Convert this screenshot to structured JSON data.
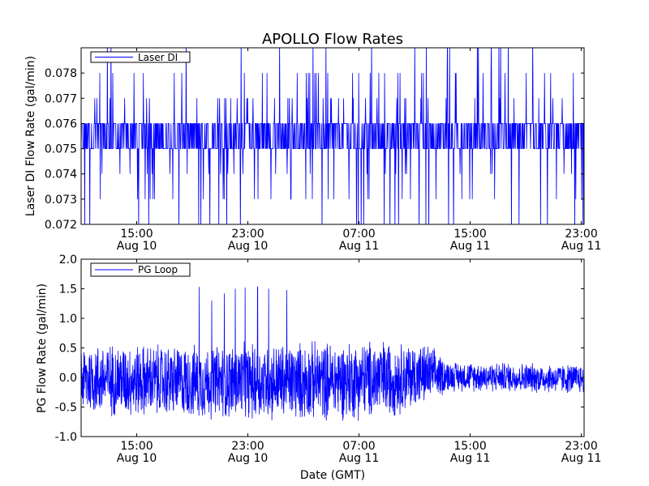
{
  "title": "APOLLO Flow Rates",
  "line_color": "#0000ff",
  "chart_data": [
    {
      "type": "line",
      "legend": "Laser DI",
      "legend_loc": "upper-left",
      "ylabel": "Laser DI Flow Rate (gal/min)",
      "ylim": [
        0.072,
        0.079
      ],
      "yticks": [
        "0.072",
        "0.073",
        "0.074",
        "0.075",
        "0.076",
        "0.077",
        "0.078"
      ],
      "ytick_values": [
        0.072,
        0.073,
        0.074,
        0.075,
        0.076,
        0.077,
        0.078
      ],
      "xticks": [
        {
          "time": "15:00",
          "date": "Aug 10",
          "t": 4
        },
        {
          "time": "23:00",
          "date": "Aug 10",
          "t": 12
        },
        {
          "time": "07:00",
          "date": "Aug 11",
          "t": 20
        },
        {
          "time": "15:00",
          "date": "Aug 11",
          "t": 28
        },
        {
          "time": "23:00",
          "date": "Aug 11",
          "t": 36
        }
      ],
      "xlim_hours": [
        0,
        36.2
      ],
      "xlim_start": "Aug 10 11:00",
      "quantization": 0.001,
      "baseline_values": [
        0.075,
        0.076
      ],
      "spike_values": [
        0.073,
        0.074,
        0.077,
        0.078
      ]
    },
    {
      "type": "line",
      "legend": "PG Loop",
      "legend_loc": "upper-left",
      "ylabel": "PG Flow Rate (gal/min)",
      "xlabel": "Date (GMT)",
      "ylim": [
        -1.0,
        2.0
      ],
      "yticks": [
        "-1.0",
        "-0.5",
        "0.0",
        "0.5",
        "1.0",
        "1.5",
        "2.0"
      ],
      "ytick_values": [
        -1.0,
        -0.5,
        0.0,
        0.5,
        1.0,
        1.5,
        2.0
      ],
      "xticks": [
        {
          "time": "15:00",
          "date": "Aug 10",
          "t": 4
        },
        {
          "time": "23:00",
          "date": "Aug 10",
          "t": 12
        },
        {
          "time": "07:00",
          "date": "Aug 11",
          "t": 20
        },
        {
          "time": "15:00",
          "date": "Aug 11",
          "t": 28
        },
        {
          "time": "23:00",
          "date": "Aug 11",
          "t": 36
        }
      ],
      "xlim_hours": [
        0,
        36.2
      ],
      "envelope": [
        {
          "t": 0,
          "lo": -0.7,
          "hi": 0.65
        },
        {
          "t": 8,
          "lo": -0.75,
          "hi": 0.6
        },
        {
          "t": 14,
          "lo": -0.8,
          "hi": 0.65
        },
        {
          "t": 22,
          "lo": -0.75,
          "hi": 0.7
        },
        {
          "t": 25,
          "lo": -0.5,
          "hi": 0.6
        },
        {
          "t": 26.5,
          "lo": -0.25,
          "hi": 0.3
        },
        {
          "t": 36.2,
          "lo": -0.3,
          "hi": 0.25
        }
      ],
      "peaks": [
        {
          "t": 8.5,
          "v": 1.53
        },
        {
          "t": 9.4,
          "v": 1.3
        },
        {
          "t": 10.3,
          "v": 1.42
        },
        {
          "t": 11.1,
          "v": 1.5
        },
        {
          "t": 11.8,
          "v": 1.52
        },
        {
          "t": 12.7,
          "v": 1.53
        },
        {
          "t": 13.5,
          "v": 1.5
        },
        {
          "t": 14.8,
          "v": 1.48
        }
      ]
    }
  ]
}
